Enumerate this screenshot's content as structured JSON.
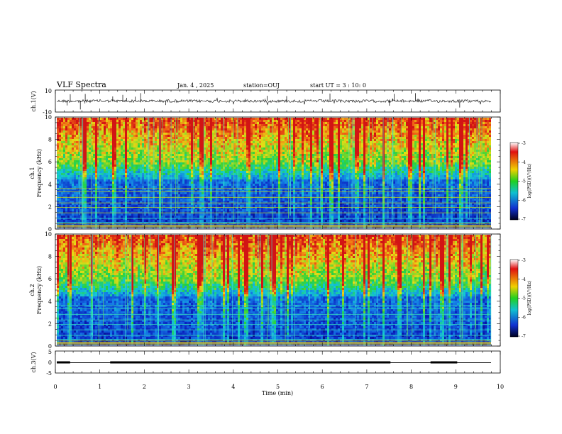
{
  "header": {
    "title": "VLF Spectra",
    "date": "Jan. 4 , 2025",
    "station": "station=OUJ",
    "start": "start  UT =  3 : 10: 0"
  },
  "chart_data": [
    {
      "type": "line",
      "panel": "ch1-waveform",
      "ylabel": "ch.1(V)",
      "ylim": [
        -10,
        10
      ],
      "yticks": [
        "10",
        "-10"
      ],
      "xlim": [
        0,
        10
      ],
      "x": [
        0,
        9.8
      ],
      "values": [
        0,
        0
      ]
    },
    {
      "type": "heatmap",
      "panel": "ch1-spectrogram",
      "ylabel": "Frequency (kHz)",
      "channel_label": "ch.1",
      "ylim": [
        0,
        10
      ],
      "yticks": [
        "0",
        "2",
        "4",
        "6",
        "8",
        "10"
      ],
      "xlim": [
        0,
        10
      ],
      "colorbar": {
        "label": "log(PSD)(V²/Hz)",
        "range": [
          -7,
          -3
        ],
        "ticks": [
          "-3",
          "-4",
          "-5",
          "-6",
          "-7"
        ]
      }
    },
    {
      "type": "heatmap",
      "panel": "ch2-spectrogram",
      "ylabel": "Frequency (kHz)",
      "channel_label": "ch.2",
      "ylim": [
        0,
        10
      ],
      "yticks": [
        "0",
        "2",
        "4",
        "6",
        "8",
        "10"
      ],
      "xlim": [
        0,
        10
      ],
      "colorbar": {
        "label": "log(PSD)(V²/Hz)",
        "range": [
          -7,
          -3
        ],
        "ticks": [
          "-3",
          "-4",
          "-5",
          "-6",
          "-7"
        ]
      }
    },
    {
      "type": "line",
      "panel": "ch3-level",
      "ylabel": "ch.3(V)",
      "ylim": [
        -5,
        5
      ],
      "yticks": [
        "5",
        "0",
        "-5"
      ],
      "xlim": [
        0,
        10
      ],
      "segments": [
        [
          0,
          0.3
        ],
        [
          1.2,
          7.5
        ],
        [
          8.4,
          9.0
        ]
      ]
    }
  ],
  "xaxis": {
    "label": "Time (min)",
    "ticks": [
      "0",
      "1",
      "2",
      "3",
      "4",
      "5",
      "6",
      "7",
      "8",
      "9",
      "10"
    ]
  }
}
